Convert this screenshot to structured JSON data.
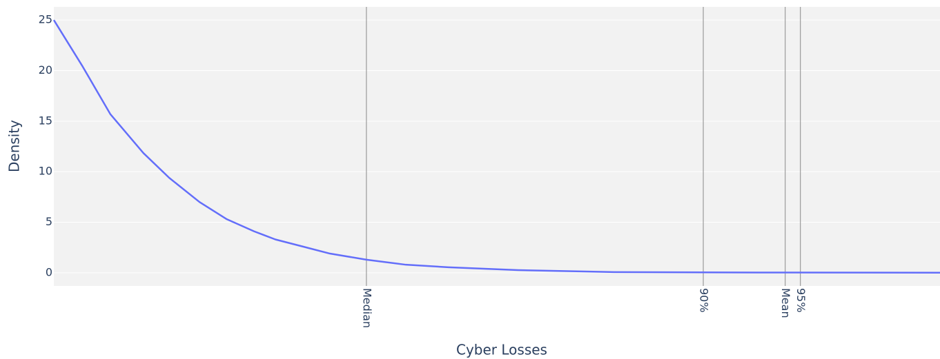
{
  "chart_data": {
    "type": "line",
    "xlabel": "Cyber Losses",
    "ylabel": "Density",
    "x": [
      0,
      0.0095,
      0.0186,
      0.0295,
      0.038,
      0.048,
      0.057,
      0.066,
      0.073,
      0.082,
      0.091,
      0.103,
      0.116,
      0.13,
      0.153,
      0.185,
      0.232,
      0.292
    ],
    "values": [
      25,
      20.4,
      15.7,
      11.85,
      9.4,
      7.0,
      5.3,
      4.1,
      3.3,
      2.6,
      1.9,
      1.3,
      0.8,
      0.55,
      0.27,
      0.07,
      0.03,
      0.01
    ],
    "color": "#636efa",
    "xlim": [
      0,
      0.292
    ],
    "ylim": [
      -1.3,
      26.3
    ],
    "yticks": [
      0,
      5,
      10,
      15,
      20,
      25
    ],
    "xticks": [
      {
        "value": 0.103,
        "label": "Median"
      },
      {
        "value": 0.214,
        "label": "90%"
      },
      {
        "value": 0.241,
        "label": "Mean"
      },
      {
        "value": 0.246,
        "label": "95%"
      }
    ],
    "grid": true
  }
}
